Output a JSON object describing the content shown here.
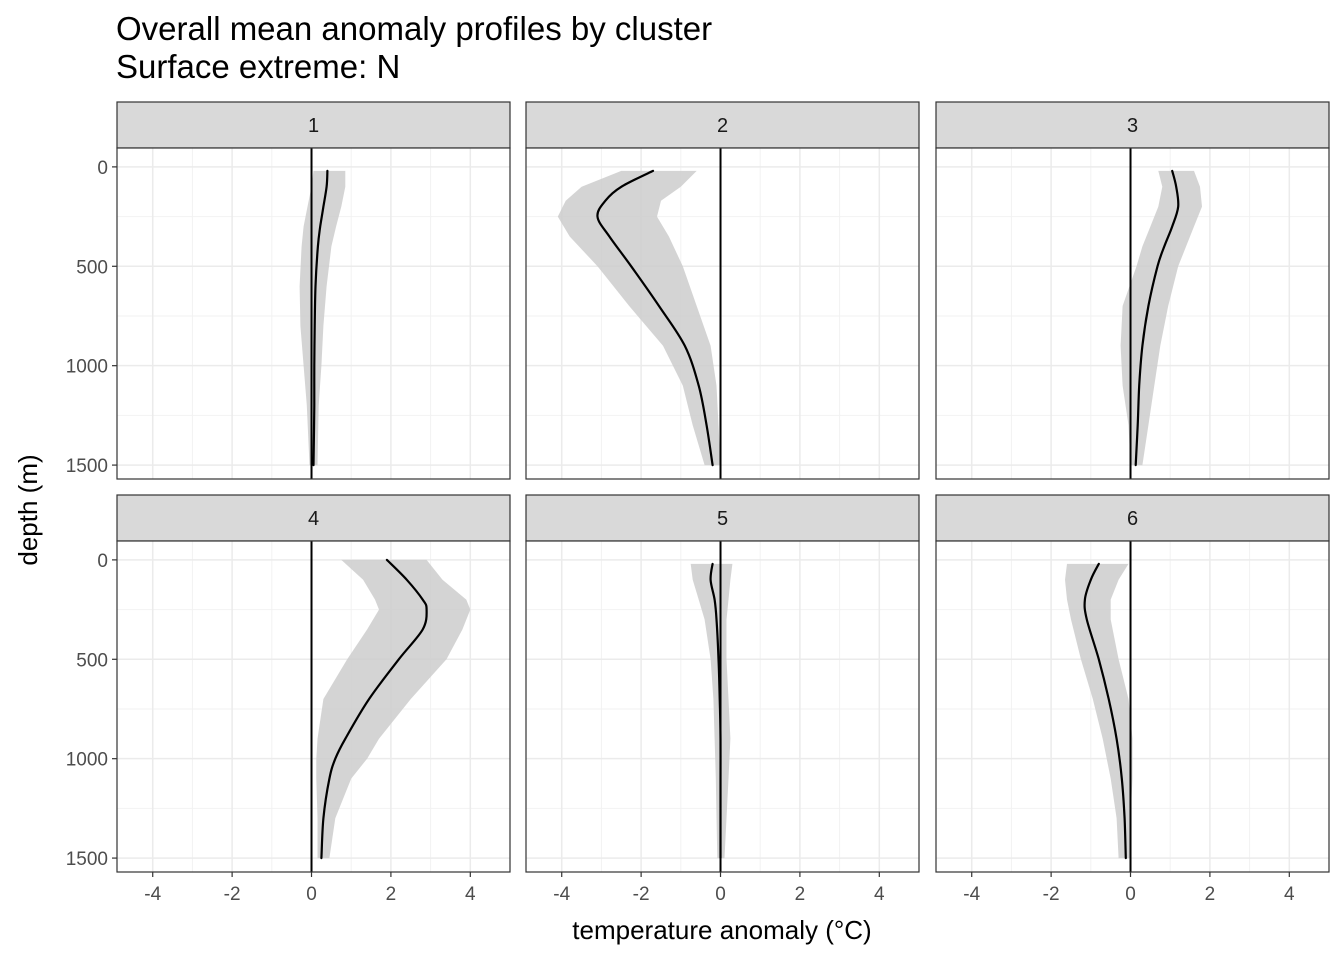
{
  "chart_data": {
    "type": "line",
    "title": "Overall mean anomaly profiles by cluster",
    "subtitle": "Surface extreme: N",
    "xlabel": "temperature anomaly (°C)",
    "ylabel": "depth (m)",
    "xlim": [
      -4.9,
      5.0
    ],
    "ylim": [
      -95,
      1570
    ],
    "x_ticks": [
      -4,
      -2,
      0,
      2,
      4
    ],
    "x_tick_labels": [
      "-4",
      "-2",
      "0",
      "2",
      "4"
    ],
    "y_ticks": [
      0,
      500,
      1000,
      1500
    ],
    "y_tick_labels": [
      "0",
      "500",
      "1000",
      "1500"
    ],
    "grid": true,
    "zero_reference_line": 0,
    "facets": [
      {
        "label": "1",
        "depth": [
          20,
          100,
          200,
          300,
          400,
          600,
          800,
          1000,
          1200,
          1500
        ],
        "mean": [
          0.4,
          0.38,
          0.3,
          0.22,
          0.16,
          0.1,
          0.08,
          0.07,
          0.07,
          0.05
        ],
        "lower": [
          0.05,
          0.0,
          -0.1,
          -0.2,
          -0.25,
          -0.3,
          -0.28,
          -0.2,
          -0.12,
          -0.05
        ],
        "upper": [
          0.85,
          0.85,
          0.75,
          0.62,
          0.5,
          0.38,
          0.3,
          0.25,
          0.18,
          0.15
        ]
      },
      {
        "label": "2",
        "depth": [
          20,
          100,
          170,
          250,
          350,
          500,
          700,
          900,
          1100,
          1300,
          1500
        ],
        "mean": [
          -1.7,
          -2.5,
          -2.9,
          -3.1,
          -2.8,
          -2.25,
          -1.55,
          -0.9,
          -0.55,
          -0.35,
          -0.2
        ],
        "lower": [
          -2.5,
          -3.5,
          -3.9,
          -4.1,
          -3.8,
          -3.1,
          -2.3,
          -1.45,
          -0.95,
          -0.7,
          -0.4
        ],
        "upper": [
          -0.6,
          -1.0,
          -1.5,
          -1.6,
          -1.3,
          -0.95,
          -0.6,
          -0.25,
          -0.1,
          -0.05,
          0.0
        ]
      },
      {
        "label": "3",
        "depth": [
          20,
          100,
          200,
          300,
          400,
          500,
          700,
          900,
          1100,
          1300,
          1500
        ],
        "mean": [
          1.05,
          1.15,
          1.2,
          1.05,
          0.85,
          0.68,
          0.45,
          0.3,
          0.22,
          0.18,
          0.13
        ],
        "lower": [
          0.7,
          0.8,
          0.7,
          0.5,
          0.3,
          0.15,
          -0.2,
          -0.25,
          -0.2,
          -0.05,
          0.0
        ],
        "upper": [
          1.6,
          1.75,
          1.8,
          1.6,
          1.4,
          1.2,
          0.95,
          0.75,
          0.6,
          0.45,
          0.3
        ]
      },
      {
        "label": "4",
        "depth": [
          0,
          100,
          200,
          250,
          350,
          500,
          700,
          900,
          1000,
          1100,
          1300,
          1500
        ],
        "mean": [
          1.9,
          2.4,
          2.8,
          2.9,
          2.8,
          2.2,
          1.45,
          0.85,
          0.6,
          0.45,
          0.3,
          0.25
        ],
        "lower": [
          0.75,
          1.3,
          1.6,
          1.7,
          1.4,
          0.9,
          0.3,
          0.15,
          0.12,
          0.12,
          0.15,
          0.15
        ],
        "upper": [
          2.9,
          3.3,
          3.9,
          4.0,
          3.8,
          3.4,
          2.5,
          1.7,
          1.4,
          1.0,
          0.6,
          0.45
        ]
      },
      {
        "label": "5",
        "depth": [
          20,
          100,
          200,
          300,
          500,
          700,
          900,
          1100,
          1300,
          1500
        ],
        "mean": [
          -0.2,
          -0.25,
          -0.15,
          -0.1,
          -0.05,
          -0.02,
          0.0,
          0.0,
          0.0,
          0.0
        ],
        "lower": [
          -0.75,
          -0.7,
          -0.55,
          -0.4,
          -0.25,
          -0.18,
          -0.15,
          -0.12,
          -0.1,
          -0.08
        ],
        "upper": [
          0.3,
          0.25,
          0.2,
          0.15,
          0.15,
          0.2,
          0.25,
          0.2,
          0.15,
          0.1
        ]
      },
      {
        "label": "6",
        "depth": [
          20,
          100,
          200,
          300,
          500,
          700,
          900,
          1100,
          1300,
          1500
        ],
        "mean": [
          -0.8,
          -1.0,
          -1.15,
          -1.1,
          -0.8,
          -0.55,
          -0.35,
          -0.22,
          -0.15,
          -0.12
        ],
        "lower": [
          -1.6,
          -1.65,
          -1.6,
          -1.5,
          -1.25,
          -0.95,
          -0.7,
          -0.5,
          -0.35,
          -0.3
        ],
        "upper": [
          -0.05,
          -0.3,
          -0.5,
          -0.5,
          -0.3,
          -0.05,
          0.05,
          0.05,
          0.0,
          0.0
        ]
      }
    ]
  }
}
